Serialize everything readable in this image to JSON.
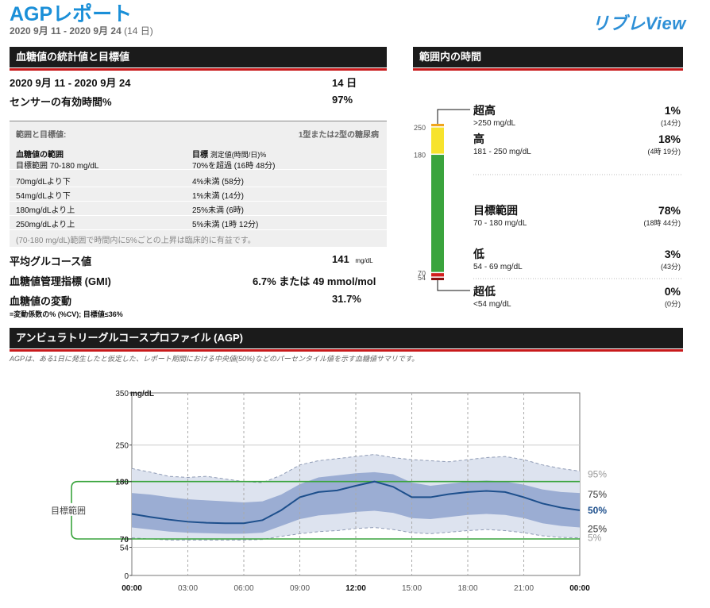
{
  "header": {
    "title": "AGPレポート",
    "date_range": "2020 9月 11 - 2020 9月 24",
    "days": "(14 日)",
    "logo": "リブレView"
  },
  "stats": {
    "heading": "血糖値の統計値と目標値",
    "period_label": "2020 9月 11 - 2020 9月 24",
    "period_value": "14 日",
    "sensor_label": "センサーの有効時間%",
    "sensor_value": "97%",
    "targets": {
      "title": "範囲と目標値:",
      "type": "1型または2型の糖尿病",
      "col1_header": "血糖値の範囲",
      "col2_header": "目標",
      "col2_header_sub": "測定値(時間/日)%",
      "rows": [
        {
          "range": "目標範囲 70-180 mg/dL",
          "target": "70%を超過 (16時 48分)"
        },
        {
          "range": "70mg/dLより下",
          "target": "4%未満 (58分)"
        },
        {
          "range": "54mg/dLより下",
          "target": "1%未満 (14分)"
        },
        {
          "range": "180mg/dLより上",
          "target": "25%未満 (6時)"
        },
        {
          "range": "250mg/dLより上",
          "target": "5%未満 (1時 12分)"
        }
      ],
      "note": "(70-180 mg/dL)範囲で時間内に5%ごとの上昇は臨床的に有益です。"
    },
    "avg_label": "平均グルコース値",
    "avg_value": "141",
    "avg_unit": "mg/dL",
    "gmi_label": "血糖値管理指標 (GMI)",
    "gmi_value": "6.7% または 49 mmol/mol",
    "cv_label": "血糖値の変動",
    "cv_value": "31.7%",
    "cv_note": "=変動係数の% (%CV); 目標値≤36%"
  },
  "tir": {
    "heading": "範囲内の時間",
    "axis": [
      "250",
      "180",
      "70",
      "54"
    ],
    "segments": [
      {
        "name": "超高",
        "range": ">250 mg/dL",
        "pct": "1%",
        "time": "(14分)",
        "value": 1,
        "color": "#f0a51c"
      },
      {
        "name": "高",
        "range": "181 - 250 mg/dL",
        "pct": "18%",
        "time": "(4時 19分)",
        "value": 18,
        "color": "#f7e32d"
      },
      {
        "name": "目標範囲",
        "range": "70 - 180 mg/dL",
        "pct": "78%",
        "time": "(18時 44分)",
        "value": 78,
        "color": "#3aa43d"
      },
      {
        "name": "低",
        "range": "54 - 69 mg/dL",
        "pct": "3%",
        "time": "(43分)",
        "value": 3,
        "color": "#d21e1e"
      },
      {
        "name": "超低",
        "range": "<54 mg/dL",
        "pct": "0%",
        "time": "(0分)",
        "value": 0,
        "color": "#8b1010"
      }
    ]
  },
  "agp": {
    "heading": "アンビュラトリーグルコースプロファイル (AGP)",
    "description": "AGPは、ある1日に発生したと仮定した、レポート期間における中央値(50%)などのパーセンタイル値を示す血糖値サマリです。",
    "target_label": "目標範囲",
    "unit_label": "mg/dL",
    "percentile_labels": [
      "95%",
      "75%",
      "50%",
      "25%",
      "5%"
    ],
    "colors": {
      "outer": "#dde3ef",
      "inner": "#9badd3",
      "median": "#1d4f8c",
      "target_line": "#3aa43d"
    }
  },
  "chart_data": {
    "type": "area",
    "title": "アンビュラトリーグルコースプロファイル (AGP)",
    "ylabel": "mg/dL",
    "ylim": [
      0,
      350
    ],
    "yticks": [
      0,
      54,
      70,
      180,
      250,
      350
    ],
    "ytick_labels": [
      "0",
      "54",
      "70",
      "180",
      "250",
      "350"
    ],
    "xticks": [
      "00:00",
      "03:00",
      "06:00",
      "09:00",
      "12:00",
      "15:00",
      "18:00",
      "21:00",
      "00:00"
    ],
    "target_range": [
      70,
      180
    ],
    "x": [
      0,
      1,
      2,
      3,
      4,
      5,
      6,
      7,
      8,
      9,
      10,
      11,
      12,
      13,
      14,
      15,
      16,
      17,
      18,
      19,
      20,
      21,
      22,
      23,
      24
    ],
    "series": [
      {
        "name": "95%",
        "values": [
          205,
          198,
          190,
          188,
          190,
          185,
          180,
          178,
          192,
          212,
          220,
          224,
          228,
          232,
          226,
          222,
          220,
          218,
          222,
          226,
          228,
          222,
          212,
          205,
          200
        ]
      },
      {
        "name": "75%",
        "values": [
          158,
          155,
          150,
          146,
          144,
          142,
          140,
          142,
          155,
          175,
          188,
          192,
          196,
          198,
          194,
          178,
          172,
          176,
          180,
          182,
          180,
          174,
          165,
          160,
          158
        ]
      },
      {
        "name": "50%",
        "values": [
          118,
          112,
          107,
          103,
          101,
          100,
          100,
          106,
          125,
          150,
          160,
          163,
          172,
          180,
          170,
          150,
          150,
          156,
          160,
          162,
          160,
          150,
          138,
          130,
          125
        ]
      },
      {
        "name": "25%",
        "values": [
          92,
          88,
          84,
          82,
          81,
          80,
          80,
          82,
          95,
          108,
          115,
          118,
          122,
          124,
          120,
          110,
          108,
          112,
          116,
          118,
          116,
          110,
          100,
          95,
          92
        ]
      },
      {
        "name": "5%",
        "values": [
          72,
          70,
          68,
          68,
          68,
          68,
          68,
          69,
          75,
          80,
          84,
          86,
          90,
          92,
          88,
          82,
          80,
          83,
          86,
          88,
          86,
          82,
          76,
          73,
          72
        ]
      }
    ]
  }
}
